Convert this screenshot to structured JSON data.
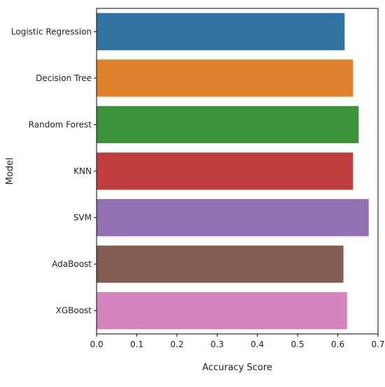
{
  "chart_data": {
    "type": "bar",
    "orientation": "horizontal",
    "title": "",
    "xlabel": "Accuracy Score",
    "ylabel": "Model",
    "categories": [
      "Logistic Regression",
      "Decision Tree",
      "Random Forest",
      "KNN",
      "SVM",
      "AdaBoost",
      "XGBoost"
    ],
    "values": [
      0.617,
      0.638,
      0.652,
      0.638,
      0.677,
      0.614,
      0.623
    ],
    "colors": [
      "#3274a1",
      "#e1812c",
      "#3a923a",
      "#c03d3e",
      "#9372b2",
      "#845b53",
      "#d684bd"
    ],
    "xlim": [
      0,
      0.7
    ],
    "xticks": [
      0.0,
      0.1,
      0.2,
      0.3,
      0.4,
      0.5,
      0.6,
      0.7
    ],
    "xtick_labels": [
      "0.0",
      "0.1",
      "0.2",
      "0.3",
      "0.4",
      "0.5",
      "0.6",
      "0.7"
    ],
    "grid": false,
    "legend": "none"
  }
}
